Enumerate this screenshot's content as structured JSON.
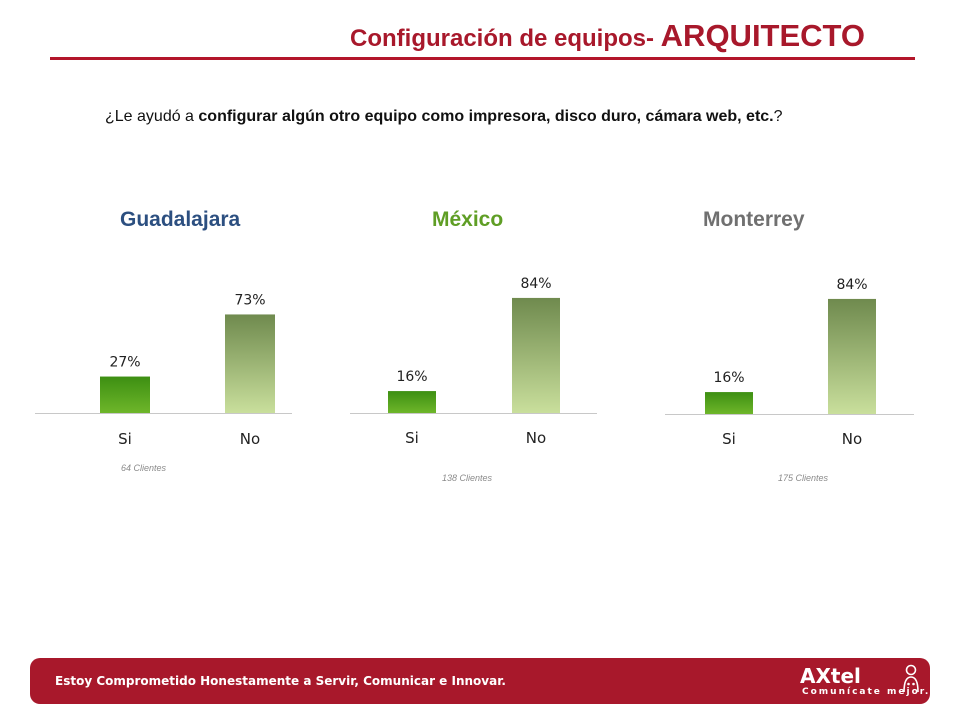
{
  "header": {
    "title_prefix": "Configuración de equipos- ",
    "title_emphasis": "ARQUITECTO"
  },
  "question": {
    "lead": "¿Le ayudó a ",
    "bold": "configurar algún otro equipo como impresora, disco duro, cámara web, etc.",
    "trail": "?"
  },
  "colors": {
    "brand_red": "#a8182b",
    "si_bar_top": "#3d8f12",
    "si_bar_bottom": "#6eb62a",
    "no_bar_top": "#6f8a4e",
    "no_bar_bottom": "#c9df9c",
    "guadalajara_title": "#2c4f80",
    "mexico_title": "#5f9e25",
    "monterrey_title": "#707070"
  },
  "chart_data": [
    {
      "type": "bar",
      "title": "Guadalajara",
      "categories": [
        "Si",
        "No"
      ],
      "values": [
        27,
        73
      ],
      "value_labels": [
        "27%",
        "73%"
      ],
      "note": "64 Clientes",
      "ylim": [
        0,
        100
      ]
    },
    {
      "type": "bar",
      "title": "México",
      "categories": [
        "Si",
        "No"
      ],
      "values": [
        16,
        84
      ],
      "value_labels": [
        "16%",
        "84%"
      ],
      "note": "138 Clientes",
      "ylim": [
        0,
        100
      ]
    },
    {
      "type": "bar",
      "title": "Monterrey",
      "categories": [
        "Si",
        "No"
      ],
      "values": [
        16,
        84
      ],
      "value_labels": [
        "16%",
        "84%"
      ],
      "note": "175 Clientes",
      "ylim": [
        0,
        100
      ]
    }
  ],
  "footer": {
    "slogan": "Estoy Comprometido Honestamente a Servir, Comunicar e Innovar.",
    "logo_word": "AXtel",
    "logo_tagline": "Comunícate mejor.",
    "logo_icon": "axtel-person-icon"
  }
}
